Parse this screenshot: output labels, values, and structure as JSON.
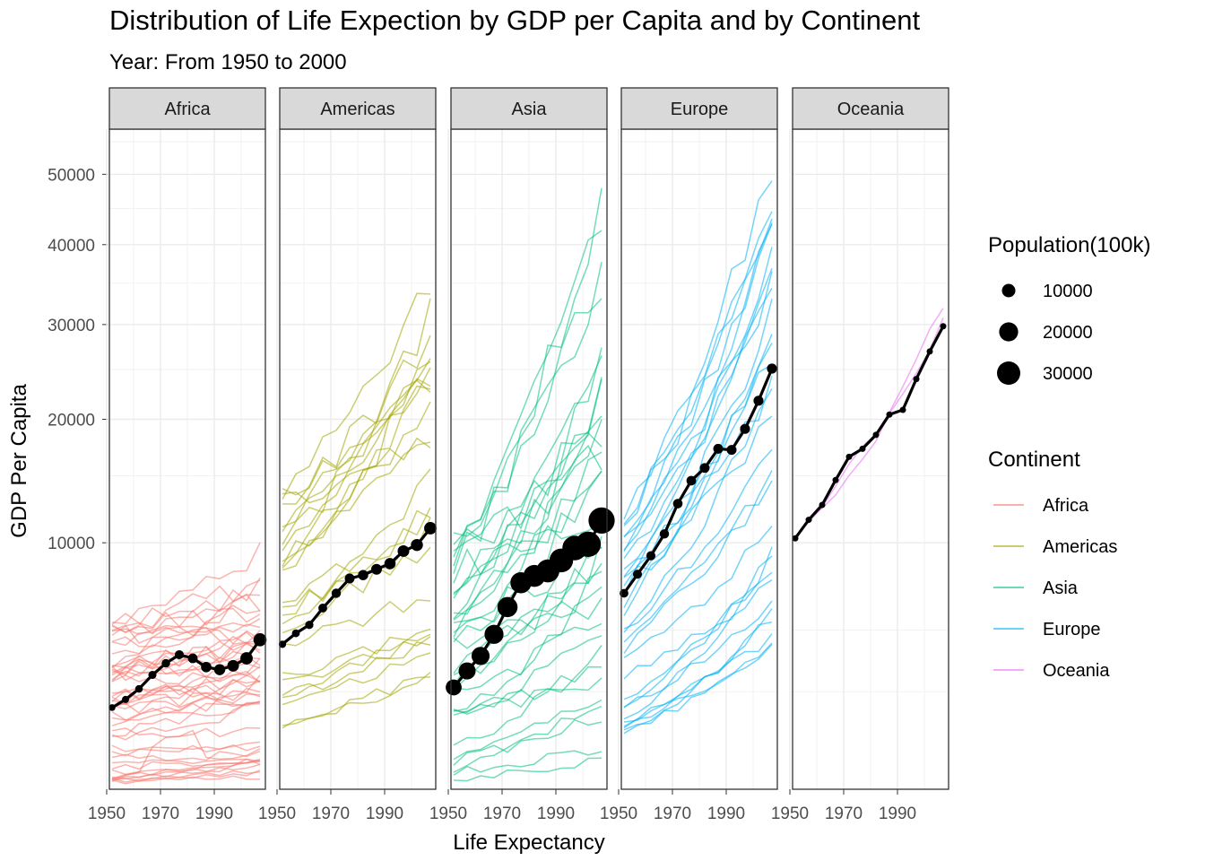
{
  "chart_data": {
    "type": "line",
    "title": "Distribution of Life Expection by GDP per Capita and by Continent",
    "subtitle": "Year: From 1950 to 2000",
    "xlabel": "Life Expectancy",
    "ylabel": "GDP Per Capita",
    "x_ticks": [
      1950,
      1970,
      1990
    ],
    "y_ticks": [
      10000,
      20000,
      30000,
      40000,
      50000
    ],
    "xlim": [
      1951,
      2009
    ],
    "y_scale": "sqrt",
    "ylim": [
      300,
      57000
    ],
    "grid": true,
    "legend_position": "right",
    "years": [
      1952,
      1957,
      1962,
      1967,
      1972,
      1977,
      1982,
      1987,
      1992,
      1997,
      2002,
      2007
    ],
    "facets": [
      {
        "name": "Africa",
        "color": "#F8766D",
        "avg_gdp": [
          2000,
          2250,
          2600,
          3100,
          3550,
          3900,
          3750,
          3400,
          3300,
          3450,
          3750,
          4550
        ],
        "population_100k": [
          2500,
          2800,
          3200,
          3600,
          4000,
          4500,
          5200,
          6000,
          6800,
          7500,
          8500,
          9500
        ]
      },
      {
        "name": "Americas",
        "color": "#A3A500",
        "avg_gdp": [
          4350,
          4850,
          5250,
          6100,
          6900,
          7750,
          7950,
          8300,
          8650,
          9450,
          9850,
          11000
        ],
        "population_100k": [
          3000,
          3400,
          3800,
          4300,
          4800,
          5300,
          5800,
          6400,
          7000,
          7500,
          8000,
          8500
        ]
      },
      {
        "name": "Asia",
        "color": "#00BF7D",
        "avg_gdp": [
          2650,
          3250,
          3850,
          4800,
          6150,
          7500,
          7900,
          8200,
          8850,
          9650,
          9900,
          11550
        ],
        "population_100k": [
          14000,
          16000,
          18000,
          20000,
          22500,
          24500,
          26500,
          29000,
          31000,
          33500,
          35500,
          38000
        ]
      },
      {
        "name": "Europe",
        "color": "#00B0F6",
        "avg_gdp": [
          6900,
          8000,
          9150,
          10600,
          12800,
          14600,
          15650,
          17300,
          17200,
          19100,
          21800,
          25100
        ],
        "population_100k": [
          4200,
          4400,
          4600,
          4800,
          5000,
          5100,
          5200,
          5300,
          5400,
          5500,
          5500,
          5600
        ]
      },
      {
        "name": "Oceania",
        "color": "#E76BF3",
        "avg_gdp": [
          10300,
          11600,
          12700,
          14650,
          16600,
          17300,
          18550,
          20450,
          20900,
          24000,
          26950,
          29800
        ],
        "population_100k": [
          100,
          110,
          120,
          130,
          150,
          160,
          170,
          180,
          200,
          210,
          230,
          245
        ]
      }
    ]
  },
  "legend_size": {
    "title": "Population(100k)",
    "entries": [
      {
        "label": "10000",
        "value": 10000
      },
      {
        "label": "20000",
        "value": 20000
      },
      {
        "label": "30000",
        "value": 30000
      }
    ]
  },
  "legend_color": {
    "title": "Continent",
    "entries": [
      {
        "label": "Africa",
        "color": "#F8766D"
      },
      {
        "label": "Americas",
        "color": "#A3A500"
      },
      {
        "label": "Asia",
        "color": "#00BF7D"
      },
      {
        "label": "Europe",
        "color": "#00B0F6"
      },
      {
        "label": "Oceania",
        "color": "#E76BF3"
      }
    ]
  }
}
